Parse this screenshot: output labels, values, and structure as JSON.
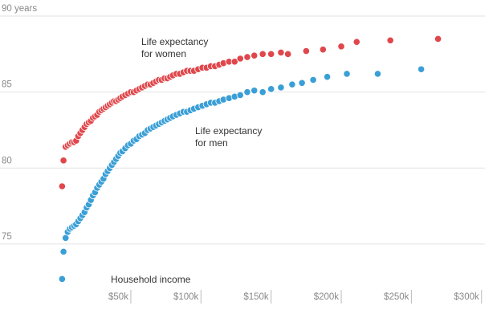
{
  "chart_data": {
    "type": "scatter",
    "annotations": [
      [
        "Life expectancy",
        "for women"
      ],
      [
        "Life expectancy",
        "for men"
      ],
      [
        "Household income"
      ]
    ],
    "series": [
      {
        "name": "women",
        "color": "#e0474c",
        "x": [
          1,
          2,
          3.5,
          5,
          6.5,
          8,
          9.5,
          11,
          12.5,
          14,
          15.5,
          17,
          18.5,
          20,
          21.5,
          23,
          24.5,
          26,
          27.5,
          29,
          30.5,
          32,
          33.5,
          35,
          36.5,
          38,
          39.5,
          41,
          42.5,
          44,
          46,
          48,
          50,
          52,
          54,
          56,
          58,
          60,
          62,
          64,
          66,
          68,
          70,
          72,
          74,
          76,
          78,
          80,
          82.5,
          85,
          87.5,
          90,
          92.5,
          95,
          98,
          101,
          104,
          107,
          110,
          113,
          116,
          120,
          124,
          128,
          133,
          138,
          144,
          150,
          157,
          162,
          175,
          187,
          200,
          211,
          235,
          269
        ],
        "values": [
          78.8,
          80.5,
          81.4,
          81.5,
          81.6,
          81.7,
          81.7,
          81.8,
          82.1,
          82.3,
          82.5,
          82.7,
          82.9,
          83.0,
          83.1,
          83.3,
          83.4,
          83.5,
          83.7,
          83.8,
          83.9,
          84.0,
          84.1,
          84.2,
          84.3,
          84.4,
          84.4,
          84.5,
          84.6,
          84.7,
          84.8,
          84.9,
          85.0,
          85.0,
          85.1,
          85.2,
          85.3,
          85.4,
          85.5,
          85.5,
          85.6,
          85.7,
          85.8,
          85.8,
          85.9,
          85.9,
          86.0,
          86.1,
          86.2,
          86.2,
          86.3,
          86.4,
          86.4,
          86.4,
          86.5,
          86.6,
          86.6,
          86.7,
          86.7,
          86.8,
          86.9,
          87.0,
          87.0,
          87.2,
          87.3,
          87.4,
          87.5,
          87.5,
          87.6,
          87.5,
          87.7,
          87.8,
          88.0,
          88.3,
          88.4,
          88.5
        ]
      },
      {
        "name": "men",
        "color": "#3a9fd6",
        "x": [
          1,
          2,
          3.5,
          5,
          6.5,
          8,
          9.5,
          11,
          12.5,
          14,
          15.5,
          17,
          18.5,
          20,
          21.5,
          23,
          24.5,
          26,
          27.5,
          29,
          30.5,
          32,
          33.5,
          35,
          36.5,
          38,
          39.5,
          41,
          42.5,
          44,
          46,
          48,
          50,
          52,
          54,
          56,
          58,
          60,
          62,
          64,
          66,
          68,
          70,
          72,
          74,
          76,
          78,
          80,
          82.5,
          85,
          87.5,
          90,
          92.5,
          95,
          98,
          101,
          104,
          107,
          110,
          113,
          116,
          120,
          124,
          128,
          133,
          138,
          144,
          150,
          157,
          165,
          172,
          180,
          190,
          204,
          226,
          257
        ],
        "values": [
          72.7,
          74.5,
          75.4,
          75.8,
          76.0,
          76.1,
          76.2,
          76.3,
          76.5,
          76.7,
          76.9,
          77.1,
          77.4,
          77.6,
          77.9,
          78.2,
          78.4,
          78.7,
          78.9,
          79.1,
          79.3,
          79.6,
          79.8,
          80.0,
          80.2,
          80.4,
          80.6,
          80.8,
          81.0,
          81.1,
          81.3,
          81.5,
          81.6,
          81.8,
          81.9,
          82.1,
          82.2,
          82.3,
          82.5,
          82.6,
          82.7,
          82.8,
          82.9,
          83.0,
          83.1,
          83.2,
          83.3,
          83.4,
          83.5,
          83.6,
          83.7,
          83.7,
          83.8,
          83.9,
          84.0,
          84.1,
          84.2,
          84.3,
          84.3,
          84.4,
          84.5,
          84.6,
          84.7,
          84.8,
          85.0,
          85.1,
          85.0,
          85.2,
          85.3,
          85.5,
          85.6,
          85.8,
          86.0,
          86.2,
          86.2,
          86.5
        ]
      }
    ],
    "xlim": [
      0,
      303
    ],
    "xticks": [
      {
        "value": 50,
        "label": "$50k"
      },
      {
        "value": 100,
        "label": "$100k"
      },
      {
        "value": 150,
        "label": "$150k"
      },
      {
        "value": 200,
        "label": "$200k"
      },
      {
        "value": 250,
        "label": "$250k"
      },
      {
        "value": 300,
        "label": "$300k"
      }
    ],
    "ylim": [
      72,
      90
    ],
    "yticks": [
      75,
      80,
      85,
      {
        "value": 90,
        "label": "90 years"
      }
    ],
    "grid": true
  }
}
